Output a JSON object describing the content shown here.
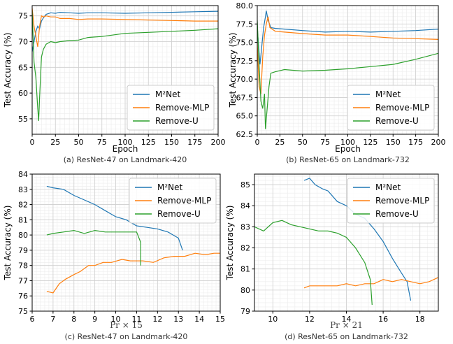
{
  "chart_data": [
    {
      "type": "line",
      "caption": "(a) ResNet-47 on Landmark-420",
      "xlabel": "Epoch",
      "ylabel": "Test Accuracy (%)",
      "xlim": [
        0,
        200
      ],
      "ylim": [
        52,
        77
      ],
      "xticks": [
        0,
        25,
        50,
        75,
        100,
        125,
        150,
        175,
        200
      ],
      "yticks": [
        55,
        60,
        65,
        70,
        75
      ],
      "grid": true,
      "legend": "lower-right",
      "series": [
        {
          "name": "M²Net",
          "color": "#1f77b4",
          "points": [
            [
              0,
              68
            ],
            [
              2,
              70
            ],
            [
              4,
              72
            ],
            [
              6,
              73
            ],
            [
              8,
              72.5
            ],
            [
              10,
              74
            ],
            [
              12,
              74.6
            ],
            [
              15,
              75.3
            ],
            [
              20,
              75.6
            ],
            [
              25,
              75.5
            ],
            [
              30,
              75.7
            ],
            [
              40,
              75.6
            ],
            [
              50,
              75.5
            ],
            [
              60,
              75.6
            ],
            [
              75,
              75.6
            ],
            [
              100,
              75.5
            ],
            [
              125,
              75.6
            ],
            [
              150,
              75.7
            ],
            [
              175,
              75.8
            ],
            [
              200,
              75.9
            ]
          ]
        },
        {
          "name": "Remove-MLP",
          "color": "#ff7f0e",
          "points": [
            [
              0,
              76.5
            ],
            [
              2,
              73
            ],
            [
              4,
              71
            ],
            [
              6,
              69
            ],
            [
              8,
              73
            ],
            [
              10,
              75
            ],
            [
              12,
              74.8
            ],
            [
              15,
              75
            ],
            [
              20,
              74.8
            ],
            [
              25,
              74.8
            ],
            [
              30,
              74.5
            ],
            [
              40,
              74.5
            ],
            [
              50,
              74.3
            ],
            [
              60,
              74.4
            ],
            [
              75,
              74.4
            ],
            [
              100,
              74.3
            ],
            [
              125,
              74.2
            ],
            [
              150,
              74.1
            ],
            [
              175,
              74.0
            ],
            [
              200,
              74.0
            ]
          ]
        },
        {
          "name": "Remove-U",
          "color": "#2ca02c",
          "points": [
            [
              0,
              76
            ],
            [
              2,
              66
            ],
            [
              4,
              63
            ],
            [
              6,
              57
            ],
            [
              7,
              54.6
            ],
            [
              8,
              59
            ],
            [
              10,
              67
            ],
            [
              12,
              68.5
            ],
            [
              15,
              69.5
            ],
            [
              20,
              70
            ],
            [
              25,
              69.8
            ],
            [
              30,
              70
            ],
            [
              40,
              70.2
            ],
            [
              50,
              70.3
            ],
            [
              60,
              70.8
            ],
            [
              75,
              71
            ],
            [
              100,
              71.6
            ],
            [
              125,
              71.8
            ],
            [
              150,
              72
            ],
            [
              175,
              72.2
            ],
            [
              200,
              72.5
            ]
          ]
        }
      ]
    },
    {
      "type": "line",
      "caption": "(b) ResNet-65 on Landmark-732",
      "xlabel": "Epoch",
      "ylabel": "Test Accuracy (%)",
      "xlim": [
        0,
        200
      ],
      "ylim": [
        62.5,
        80.0
      ],
      "xticks": [
        0,
        25,
        50,
        75,
        100,
        125,
        150,
        175,
        200
      ],
      "yticks": [
        62.5,
        65.0,
        67.5,
        70.0,
        72.5,
        75.0,
        77.5,
        80.0
      ],
      "grid": true,
      "legend": "lower-right",
      "series": [
        {
          "name": "M²Net",
          "color": "#1f77b4",
          "points": [
            [
              0,
              77
            ],
            [
              3,
              72
            ],
            [
              5,
              74.5
            ],
            [
              7,
              77
            ],
            [
              9,
              78.5
            ],
            [
              10,
              79.3
            ],
            [
              12,
              78
            ],
            [
              15,
              77
            ],
            [
              20,
              76.9
            ],
            [
              30,
              76.8
            ],
            [
              50,
              76.6
            ],
            [
              75,
              76.4
            ],
            [
              100,
              76.5
            ],
            [
              125,
              76.4
            ],
            [
              150,
              76.5
            ],
            [
              175,
              76.6
            ],
            [
              200,
              76.8
            ]
          ]
        },
        {
          "name": "Remove-MLP",
          "color": "#ff7f0e",
          "points": [
            [
              0,
              75
            ],
            [
              2,
              69
            ],
            [
              4,
              68
            ],
            [
              6,
              73
            ],
            [
              8,
              76
            ],
            [
              10,
              77.5
            ],
            [
              12,
              78.5
            ],
            [
              14,
              77
            ],
            [
              20,
              76.5
            ],
            [
              30,
              76.4
            ],
            [
              50,
              76.2
            ],
            [
              75,
              76
            ],
            [
              100,
              76
            ],
            [
              125,
              75.8
            ],
            [
              150,
              75.6
            ],
            [
              175,
              75.5
            ],
            [
              200,
              75.4
            ]
          ]
        },
        {
          "name": "Remove-U",
          "color": "#2ca02c",
          "points": [
            [
              0,
              78
            ],
            [
              2,
              72
            ],
            [
              4,
              67
            ],
            [
              6,
              66
            ],
            [
              8,
              68
            ],
            [
              9,
              63.2
            ],
            [
              11,
              66
            ],
            [
              13,
              69
            ],
            [
              15,
              70.8
            ],
            [
              20,
              71
            ],
            [
              30,
              71.3
            ],
            [
              50,
              71.1
            ],
            [
              75,
              71.2
            ],
            [
              100,
              71.4
            ],
            [
              125,
              71.7
            ],
            [
              150,
              72
            ],
            [
              175,
              72.7
            ],
            [
              200,
              73.5
            ]
          ]
        }
      ]
    },
    {
      "type": "line",
      "caption": "(c) ResNet-47 on Landmark-420",
      "xlabel": "Pr × 15",
      "ylabel": "Test Accuracy (%)",
      "xlim": [
        6,
        15
      ],
      "ylim": [
        75,
        84
      ],
      "xticks": [
        6,
        7,
        8,
        9,
        10,
        11,
        12,
        13,
        14,
        15
      ],
      "yticks": [
        75,
        76,
        77,
        78,
        79,
        80,
        81,
        82,
        83,
        84
      ],
      "grid": true,
      "legend": "top-right",
      "series": [
        {
          "name": "M²Net",
          "color": "#1f77b4",
          "points": [
            [
              6.7,
              83.2
            ],
            [
              7,
              83.1
            ],
            [
              7.5,
              83
            ],
            [
              8,
              82.6
            ],
            [
              8.5,
              82.3
            ],
            [
              9,
              82
            ],
            [
              9.5,
              81.6
            ],
            [
              10,
              81.2
            ],
            [
              10.5,
              81
            ],
            [
              11,
              80.6
            ],
            [
              11.5,
              80.5
            ],
            [
              12,
              80.4
            ],
            [
              12.5,
              80.2
            ],
            [
              13,
              79.8
            ],
            [
              13.2,
              79
            ]
          ]
        },
        {
          "name": "Remove-MLP",
          "color": "#ff7f0e",
          "points": [
            [
              6.7,
              76.3
            ],
            [
              7,
              76.2
            ],
            [
              7.3,
              76.8
            ],
            [
              7.6,
              77.1
            ],
            [
              8,
              77.4
            ],
            [
              8.3,
              77.6
            ],
            [
              8.7,
              78
            ],
            [
              9,
              78
            ],
            [
              9.4,
              78.2
            ],
            [
              9.8,
              78.2
            ],
            [
              10.3,
              78.4
            ],
            [
              10.7,
              78.3
            ],
            [
              11.3,
              78.3
            ],
            [
              11.8,
              78.2
            ],
            [
              12.3,
              78.5
            ],
            [
              12.8,
              78.6
            ],
            [
              13.3,
              78.6
            ],
            [
              13.8,
              78.8
            ],
            [
              14.3,
              78.7
            ],
            [
              14.7,
              78.8
            ],
            [
              15,
              78.8
            ]
          ]
        },
        {
          "name": "Remove-U",
          "color": "#2ca02c",
          "points": [
            [
              6.7,
              80
            ],
            [
              7,
              80.1
            ],
            [
              7.5,
              80.2
            ],
            [
              8,
              80.3
            ],
            [
              8.5,
              80.1
            ],
            [
              9,
              80.3
            ],
            [
              9.5,
              80.2
            ],
            [
              10,
              80.2
            ],
            [
              10.5,
              80.2
            ],
            [
              11,
              80.2
            ],
            [
              11.2,
              79.5
            ],
            [
              11.2,
              78
            ]
          ]
        }
      ]
    },
    {
      "type": "line",
      "caption": "(d) ResNet-65 on Landmark-732",
      "xlabel": "Pr × 21",
      "ylabel": "Test Accuracy (%)",
      "xlim": [
        9,
        19
      ],
      "ylim": [
        79,
        85.5
      ],
      "xticks": [
        10,
        12,
        14,
        16,
        18
      ],
      "yticks": [
        79,
        80,
        81,
        82,
        83,
        84,
        85
      ],
      "grid": true,
      "legend": "top-right",
      "series": [
        {
          "name": "M²Net",
          "color": "#1f77b4",
          "points": [
            [
              11.7,
              85.2
            ],
            [
              12,
              85.3
            ],
            [
              12.3,
              85
            ],
            [
              12.7,
              84.8
            ],
            [
              13,
              84.7
            ],
            [
              13.5,
              84.2
            ],
            [
              14,
              84
            ],
            [
              14.5,
              83.6
            ],
            [
              15,
              83.4
            ],
            [
              15.5,
              82.9
            ],
            [
              16,
              82.3
            ],
            [
              16.5,
              81.5
            ],
            [
              17,
              80.8
            ],
            [
              17.3,
              80.4
            ],
            [
              17.5,
              79.5
            ]
          ]
        },
        {
          "name": "Remove-MLP",
          "color": "#ff7f0e",
          "points": [
            [
              11.7,
              80.1
            ],
            [
              12,
              80.2
            ],
            [
              12.5,
              80.2
            ],
            [
              13,
              80.2
            ],
            [
              13.5,
              80.2
            ],
            [
              14,
              80.3
            ],
            [
              14.5,
              80.2
            ],
            [
              15,
              80.3
            ],
            [
              15.5,
              80.3
            ],
            [
              16,
              80.5
            ],
            [
              16.5,
              80.4
            ],
            [
              17,
              80.5
            ],
            [
              17.5,
              80.4
            ],
            [
              18,
              80.3
            ],
            [
              18.5,
              80.4
            ],
            [
              19,
              80.6
            ]
          ]
        },
        {
          "name": "Remove-U",
          "color": "#2ca02c",
          "points": [
            [
              9,
              83
            ],
            [
              9.5,
              82.8
            ],
            [
              10,
              83.2
            ],
            [
              10.5,
              83.3
            ],
            [
              11,
              83.1
            ],
            [
              11.5,
              83
            ],
            [
              12,
              82.9
            ],
            [
              12.5,
              82.8
            ],
            [
              13,
              82.8
            ],
            [
              13.5,
              82.7
            ],
            [
              14,
              82.5
            ],
            [
              14.5,
              82
            ],
            [
              15,
              81.3
            ],
            [
              15.3,
              80.5
            ],
            [
              15.4,
              79.3
            ]
          ]
        }
      ]
    }
  ]
}
